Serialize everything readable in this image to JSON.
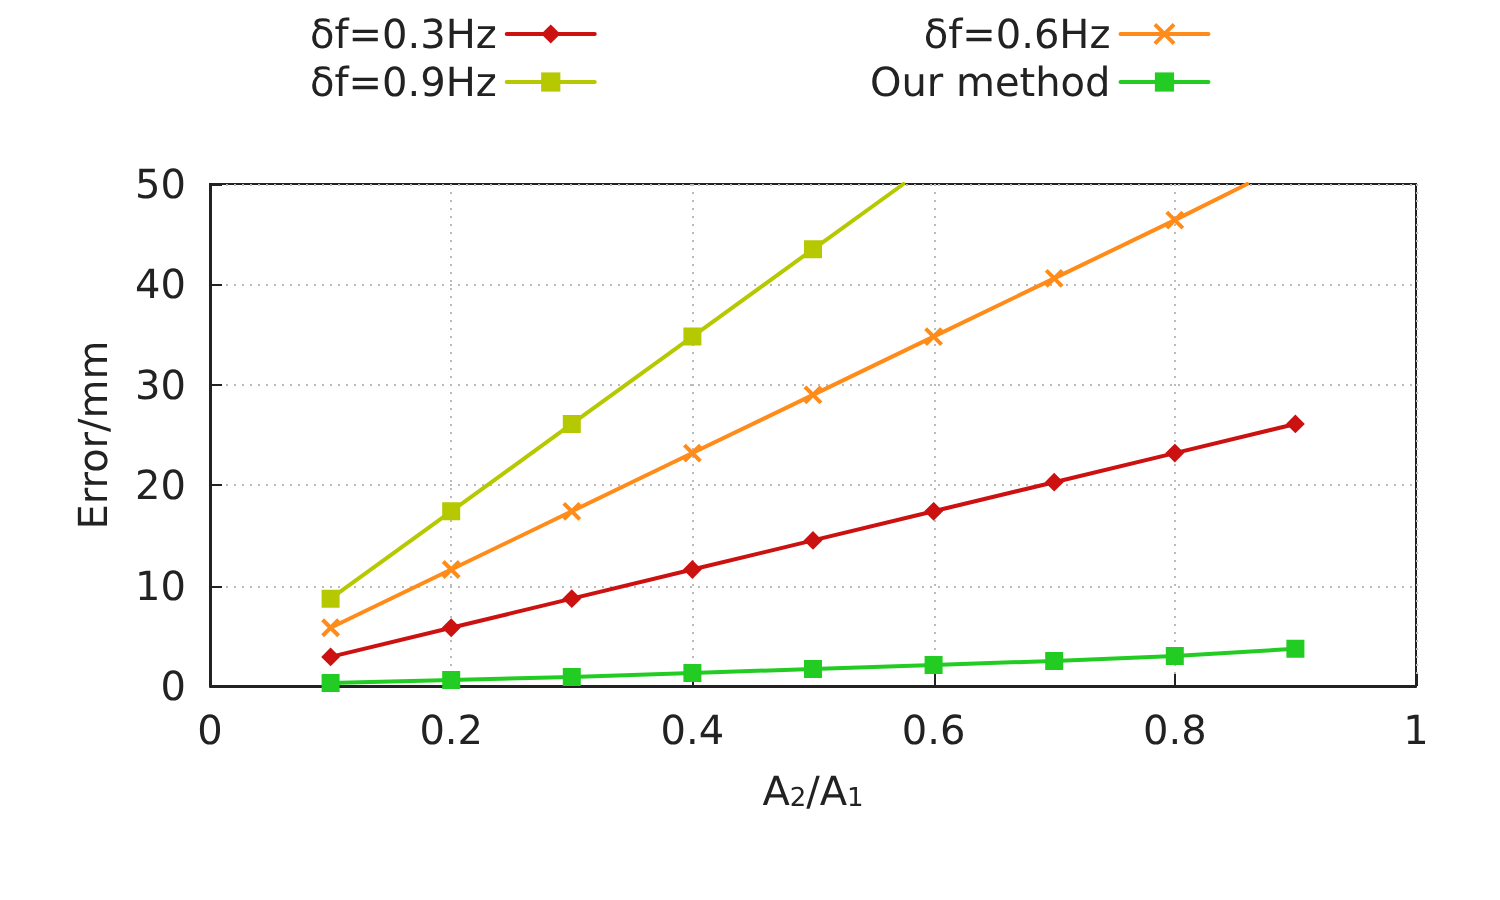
{
  "chart_data": {
    "type": "line",
    "xlabel": "A$_{2}$/A$_{1}$",
    "ylabel": "Error/mm",
    "xlim": [
      0,
      1
    ],
    "xticks": [
      0,
      0.2,
      0.4,
      0.6,
      0.8,
      1
    ],
    "ylim": [
      0,
      50
    ],
    "yticks": [
      0,
      10,
      20,
      30,
      40,
      50
    ],
    "grid": true,
    "legend": "top",
    "line_style": "solid",
    "series": [
      {
        "name": "δf=0.3Hz",
        "color": "#cc1111",
        "marker": "diamond",
        "x": [
          0.1,
          0.2,
          0.3,
          0.4,
          0.5,
          0.6,
          0.7,
          0.8,
          0.9
        ],
        "values": [
          2.9,
          5.8,
          8.7,
          11.6,
          14.5,
          17.4,
          20.3,
          23.2,
          26.1
        ]
      },
      {
        "name": "δf=0.6Hz",
        "color": "#ff8c1a",
        "marker": "cross",
        "x": [
          0.1,
          0.2,
          0.3,
          0.4,
          0.5,
          0.6,
          0.7,
          0.8,
          0.86
        ],
        "values": [
          5.8,
          11.6,
          17.4,
          23.2,
          29,
          34.8,
          40.6,
          46.4,
          50
        ]
      },
      {
        "name": "δf=0.9Hz",
        "color": "#b5c800",
        "marker": "square",
        "x": [
          0.1,
          0.2,
          0.3,
          0.4,
          0.5,
          0.575
        ],
        "values": [
          8.7,
          17.4,
          26.1,
          34.8,
          43.5,
          50
        ]
      },
      {
        "name": "Our method",
        "color": "#22cc22",
        "marker": "square",
        "x": [
          0.1,
          0.2,
          0.3,
          0.4,
          0.5,
          0.6,
          0.7,
          0.8,
          0.9
        ],
        "values": [
          0.3,
          0.6,
          0.9,
          1.3,
          1.7,
          2.1,
          2.5,
          3.0,
          3.7
        ]
      }
    ]
  }
}
